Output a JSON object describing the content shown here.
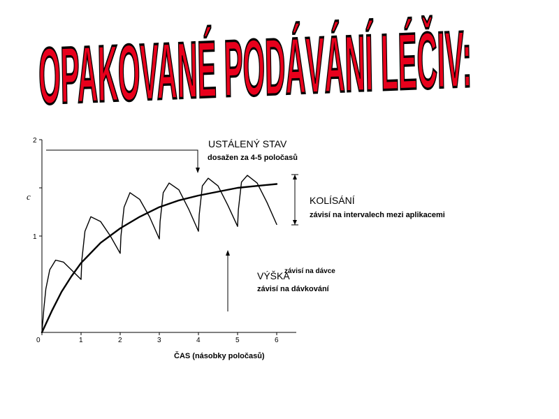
{
  "slide": {
    "title": "OPAKOVANÉ PODÁVÁNÍ LÉČIV:"
  },
  "chart_data": {
    "type": "line",
    "title": "",
    "xlabel": "ČAS (násobky poločasů)",
    "ylabel": "c",
    "xlim": [
      0,
      6
    ],
    "ylim": [
      0,
      2
    ],
    "x_ticks": [
      "0",
      "1",
      "2",
      "3",
      "4",
      "5",
      "6"
    ],
    "y_ticks": [
      "1",
      "2"
    ],
    "grid": false,
    "series": [
      {
        "x": [
          0,
          0.05,
          0.1,
          0.2,
          0.35,
          0.55,
          0.75,
          1.0,
          1.02,
          1.1,
          1.25,
          1.5,
          1.75,
          2.0,
          2.02,
          2.1,
          2.25,
          2.5,
          2.75,
          3.0,
          3.02,
          3.1,
          3.25,
          3.5,
          3.75,
          4.0,
          4.02,
          4.1,
          4.25,
          4.5,
          4.75,
          5.0,
          5.02,
          5.1,
          5.25,
          5.5,
          5.75,
          6.0
        ],
        "y": [
          0,
          0.25,
          0.45,
          0.65,
          0.75,
          0.73,
          0.65,
          0.55,
          0.75,
          1.05,
          1.2,
          1.15,
          1.0,
          0.82,
          1.0,
          1.3,
          1.45,
          1.38,
          1.2,
          0.97,
          1.15,
          1.45,
          1.55,
          1.48,
          1.28,
          1.05,
          1.22,
          1.52,
          1.6,
          1.52,
          1.32,
          1.1,
          1.27,
          1.56,
          1.63,
          1.55,
          1.35,
          1.12
        ],
        "color": "#000000"
      },
      {
        "x": [
          0,
          0.25,
          0.5,
          0.75,
          1.0,
          1.5,
          2.0,
          2.5,
          3.0,
          3.5,
          4.0,
          4.5,
          5.0,
          5.5,
          6.0
        ],
        "y": [
          0,
          0.22,
          0.42,
          0.58,
          0.72,
          0.93,
          1.08,
          1.2,
          1.3,
          1.37,
          1.42,
          1.46,
          1.5,
          1.52,
          1.54
        ],
        "color": "#000000"
      }
    ],
    "annotations": {
      "steady_state": "USTÁLENÝ STAV",
      "steady_state_note": "dosažen za 4-5 poločasů",
      "fluctuation": "KOLÍSÁNÍ",
      "fluctuation_note": "závisí na intervalech mezi aplikacemi",
      "height": "VÝŠKA",
      "height_note_dose": "závisí na dávce",
      "height_note_dosing": "závisí na dávkování"
    }
  }
}
